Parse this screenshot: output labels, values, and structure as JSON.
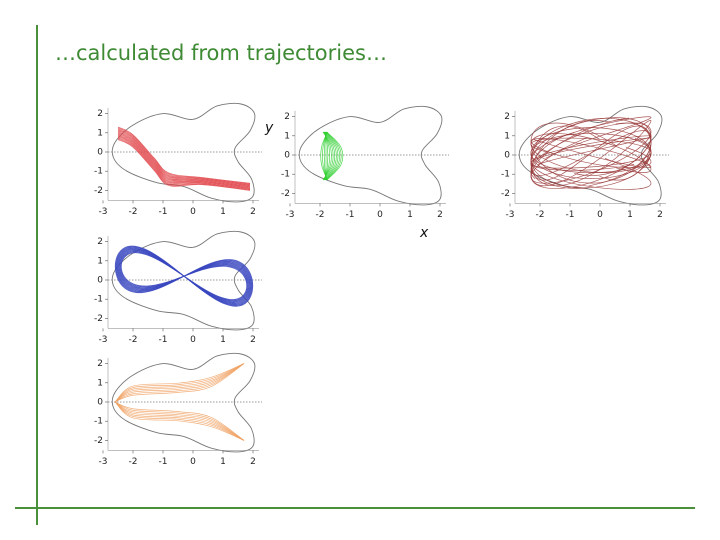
{
  "title": "…calculated from trajectories…",
  "axis_labels": {
    "y": "y",
    "x": "x"
  },
  "xticks": [
    -3,
    -2,
    -1,
    0,
    1,
    2
  ],
  "yticks": [
    2,
    1,
    0,
    -1,
    -2
  ]
}
